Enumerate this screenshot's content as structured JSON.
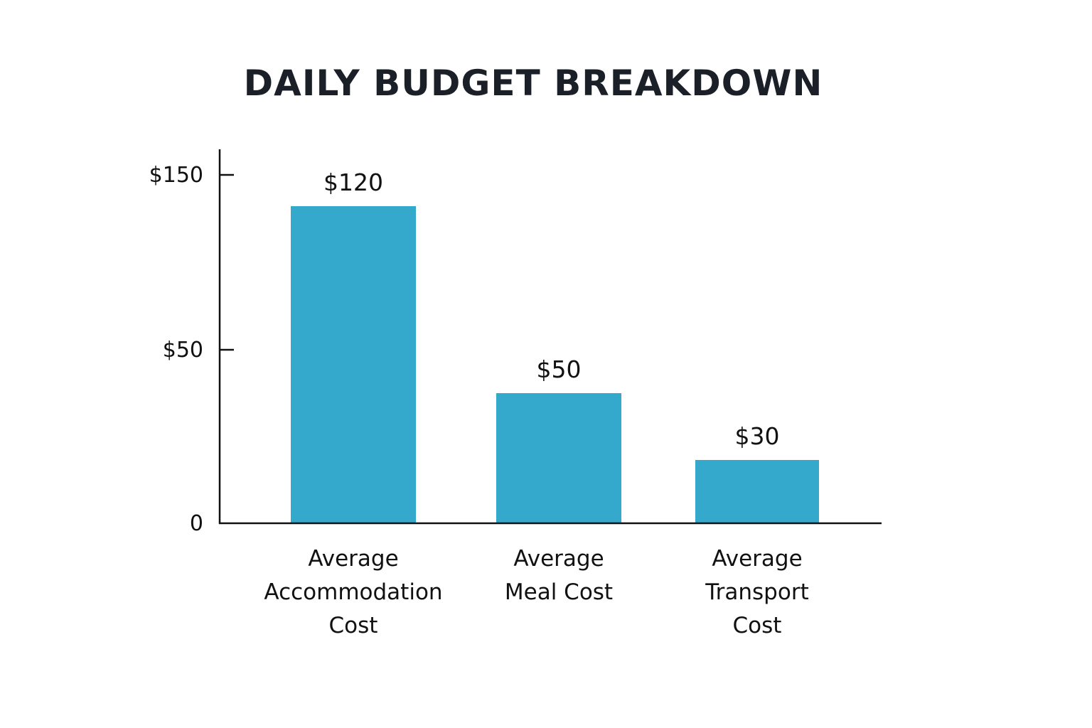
{
  "chart_data": {
    "type": "bar",
    "title": "DAILY BUDGET BREAKDOWN",
    "xlabel": "",
    "ylabel": "",
    "categories": [
      "Average Accommodation Cost",
      "Average Meal Cost",
      "Average Transport Cost"
    ],
    "category_lines": [
      [
        "Average",
        "Accommodation",
        "Cost"
      ],
      [
        "Average",
        "Meal Cost"
      ],
      [
        "Average",
        "Transport",
        "Cost"
      ]
    ],
    "values": [
      120,
      50,
      30
    ],
    "value_labels": [
      "$120",
      "$50",
      "$30"
    ],
    "y_ticks": [
      {
        "value": 0,
        "label": "0"
      },
      {
        "value": 50,
        "label": "$50"
      },
      {
        "value": 150,
        "label": "$150"
      }
    ],
    "ylim": [
      0,
      150
    ],
    "grid": false,
    "legend": "none",
    "colors": {
      "bar": "#35a9cb",
      "axis": "#111111",
      "title": "#1b2028"
    }
  }
}
